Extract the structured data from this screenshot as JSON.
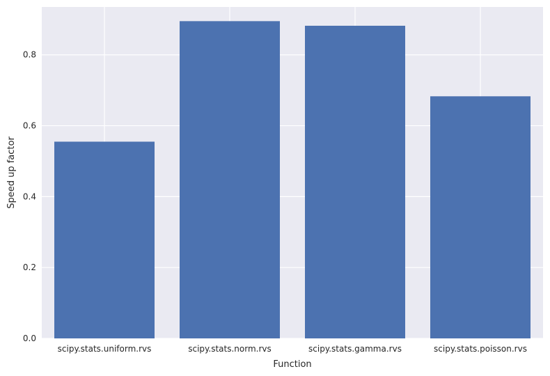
{
  "chart_data": {
    "type": "bar",
    "title": "",
    "xlabel": "Function",
    "ylabel": "Speed up factor",
    "categories": [
      "scipy.stats.uniform.rvs",
      "scipy.stats.norm.rvs",
      "scipy.stats.gamma.rvs",
      "scipy.stats.poisson.rvs"
    ],
    "values": [
      0.555,
      0.895,
      0.882,
      0.683
    ],
    "ylim": [
      0,
      0.935
    ],
    "yticks": [
      0.0,
      0.2,
      0.4,
      0.6,
      0.8
    ],
    "ytick_labels": [
      "0.0",
      "0.2",
      "0.4",
      "0.6",
      "0.8"
    ],
    "grid": true,
    "colors": {
      "bar": "#4c72b0",
      "plot_background": "#eaeaf2",
      "grid": "#ffffff",
      "text": "#262626"
    }
  }
}
